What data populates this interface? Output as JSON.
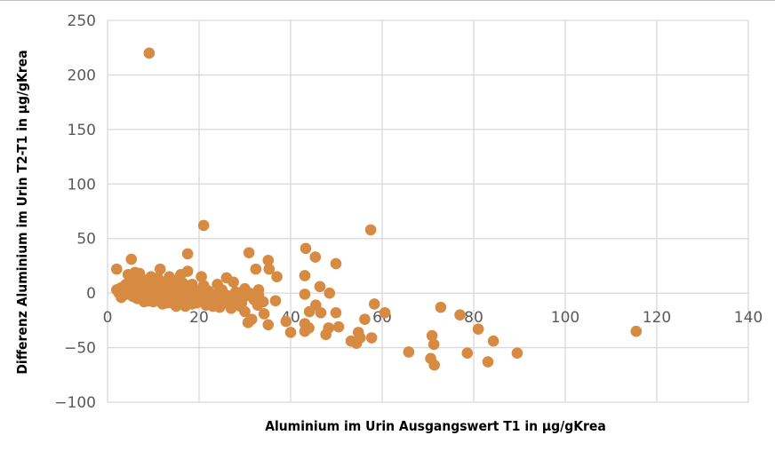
{
  "chart_data": {
    "type": "scatter",
    "title": "",
    "xlabel": "Aluminium im Urin Ausgangswert T1 in µg/gKrea",
    "ylabel": "Differenz Aluminium im Urin T2-T1 in µg/gKrea",
    "xlim": [
      0,
      140
    ],
    "ylim": [
      -100,
      250
    ],
    "xticks": [
      0,
      20,
      40,
      60,
      80,
      100,
      120,
      140
    ],
    "yticks": [
      -100,
      -50,
      0,
      50,
      100,
      150,
      200,
      250
    ],
    "xtick_labels": [
      "0",
      "20",
      "40",
      "60",
      "80",
      "100",
      "120",
      "140"
    ],
    "ytick_labels": [
      "−100",
      "−50",
      "0",
      "50",
      "100",
      "150",
      "200",
      "250"
    ],
    "grid": true,
    "legend": "none",
    "marker_color": "#D68A42",
    "grid_color": "#D9D9D9",
    "points": [
      [
        9.1,
        220
      ],
      [
        21,
        62
      ],
      [
        57.5,
        58
      ],
      [
        43.3,
        41
      ],
      [
        45.4,
        33
      ],
      [
        49.9,
        27
      ],
      [
        30.9,
        37
      ],
      [
        17.5,
        36
      ],
      [
        5.2,
        31
      ],
      [
        35.1,
        30
      ],
      [
        32.4,
        22
      ],
      [
        35.3,
        22
      ],
      [
        37,
        15
      ],
      [
        43.1,
        16
      ],
      [
        46.4,
        6
      ],
      [
        43.1,
        -1
      ],
      [
        48.5,
        0
      ],
      [
        58.3,
        -10
      ],
      [
        60.6,
        -18
      ],
      [
        72.8,
        -13
      ],
      [
        77,
        -20
      ],
      [
        56.2,
        -24
      ],
      [
        49.9,
        -18
      ],
      [
        45.5,
        -11
      ],
      [
        46.6,
        -18
      ],
      [
        44.1,
        -17
      ],
      [
        39,
        -26
      ],
      [
        40,
        -36
      ],
      [
        43.1,
        -28
      ],
      [
        43.1,
        -35
      ],
      [
        44,
        -32
      ],
      [
        48.3,
        -32
      ],
      [
        47.7,
        -38
      ],
      [
        50.5,
        -31
      ],
      [
        54.8,
        -36
      ],
      [
        53.2,
        -44
      ],
      [
        54.4,
        -46
      ],
      [
        55.2,
        -41
      ],
      [
        57.7,
        -41
      ],
      [
        65.8,
        -54
      ],
      [
        70.9,
        -39
      ],
      [
        71.3,
        -47
      ],
      [
        70.6,
        -60
      ],
      [
        71.4,
        -66
      ],
      [
        78.6,
        -55
      ],
      [
        81,
        -33
      ],
      [
        84.3,
        -44
      ],
      [
        83.1,
        -63
      ],
      [
        89.5,
        -55
      ],
      [
        115.5,
        -35
      ],
      [
        35.1,
        -29
      ],
      [
        34.2,
        -19
      ],
      [
        32.8,
        -11
      ],
      [
        29.3,
        -9
      ],
      [
        30,
        -17
      ],
      [
        31.5,
        -24
      ],
      [
        30.7,
        -27
      ],
      [
        36.7,
        -7
      ],
      [
        2,
        3
      ],
      [
        2.5,
        0
      ],
      [
        3,
        5
      ],
      [
        3,
        -2
      ],
      [
        3.5,
        2
      ],
      [
        4,
        8
      ],
      [
        4,
        -1
      ],
      [
        4.5,
        4
      ],
      [
        5,
        0
      ],
      [
        5,
        10
      ],
      [
        5.5,
        -3
      ],
      [
        5.5,
        6
      ],
      [
        6,
        2
      ],
      [
        6,
        14
      ],
      [
        6.5,
        -5
      ],
      [
        6.5,
        9
      ],
      [
        7,
        0
      ],
      [
        7,
        4
      ],
      [
        7,
        18
      ],
      [
        7.5,
        -2
      ],
      [
        8,
        6
      ],
      [
        8,
        12
      ],
      [
        8.5,
        -6
      ],
      [
        8.5,
        2
      ],
      [
        9,
        0
      ],
      [
        9,
        9
      ],
      [
        9.5,
        -3
      ],
      [
        9.5,
        15
      ],
      [
        10,
        4
      ],
      [
        10,
        -8
      ],
      [
        10.5,
        1
      ],
      [
        10.5,
        11
      ],
      [
        11,
        -4
      ],
      [
        11,
        7
      ],
      [
        11.5,
        0
      ],
      [
        11.5,
        22
      ],
      [
        12,
        -6
      ],
      [
        12,
        3
      ],
      [
        12.5,
        10
      ],
      [
        12.5,
        -2
      ],
      [
        13,
        5
      ],
      [
        13,
        -9
      ],
      [
        13.5,
        1
      ],
      [
        13.5,
        15
      ],
      [
        14,
        -4
      ],
      [
        14,
        8
      ],
      [
        14.5,
        0
      ],
      [
        14.5,
        -10
      ],
      [
        15,
        3
      ],
      [
        15,
        12
      ],
      [
        15.5,
        -6
      ],
      [
        15.5,
        6
      ],
      [
        16,
        0
      ],
      [
        16,
        17
      ],
      [
        16.5,
        -8
      ],
      [
        16.5,
        9
      ],
      [
        17,
        -3
      ],
      [
        17,
        4
      ],
      [
        17.5,
        20
      ],
      [
        18,
        -5
      ],
      [
        18,
        1
      ],
      [
        18.5,
        -10
      ],
      [
        18.5,
        8
      ],
      [
        19,
        -2
      ],
      [
        19,
        3
      ],
      [
        20,
        -6
      ],
      [
        20,
        0
      ],
      [
        20.5,
        15
      ],
      [
        21,
        -3
      ],
      [
        21,
        7
      ],
      [
        22,
        -8
      ],
      [
        22,
        2
      ],
      [
        23,
        -5
      ],
      [
        23,
        -12
      ],
      [
        24,
        0
      ],
      [
        24,
        8
      ],
      [
        25,
        -7
      ],
      [
        25,
        3
      ],
      [
        26,
        -2
      ],
      [
        26,
        14
      ],
      [
        26.5,
        -10
      ],
      [
        27,
        -4
      ],
      [
        27.5,
        10
      ],
      [
        28,
        -8
      ],
      [
        28,
        1
      ],
      [
        29,
        -5
      ],
      [
        29,
        -12
      ],
      [
        30,
        4
      ],
      [
        30,
        -3
      ],
      [
        31,
        0
      ],
      [
        32,
        -6
      ],
      [
        33,
        -2
      ],
      [
        33,
        3
      ],
      [
        34,
        -8
      ],
      [
        2,
        22
      ],
      [
        7,
        -4
      ],
      [
        8,
        -8
      ],
      [
        3,
        -4
      ],
      [
        4.5,
        17
      ],
      [
        6,
        19
      ],
      [
        9,
        -7
      ],
      [
        11,
        14
      ],
      [
        12,
        -10
      ],
      [
        13.5,
        -4
      ],
      [
        15,
        -12
      ],
      [
        17,
        -12
      ],
      [
        19.5,
        -9
      ],
      [
        21.5,
        -11
      ],
      [
        23.5,
        -3
      ],
      [
        24.5,
        -13
      ],
      [
        26,
        -6
      ],
      [
        27,
        -14
      ],
      [
        28.5,
        -4
      ]
    ]
  }
}
